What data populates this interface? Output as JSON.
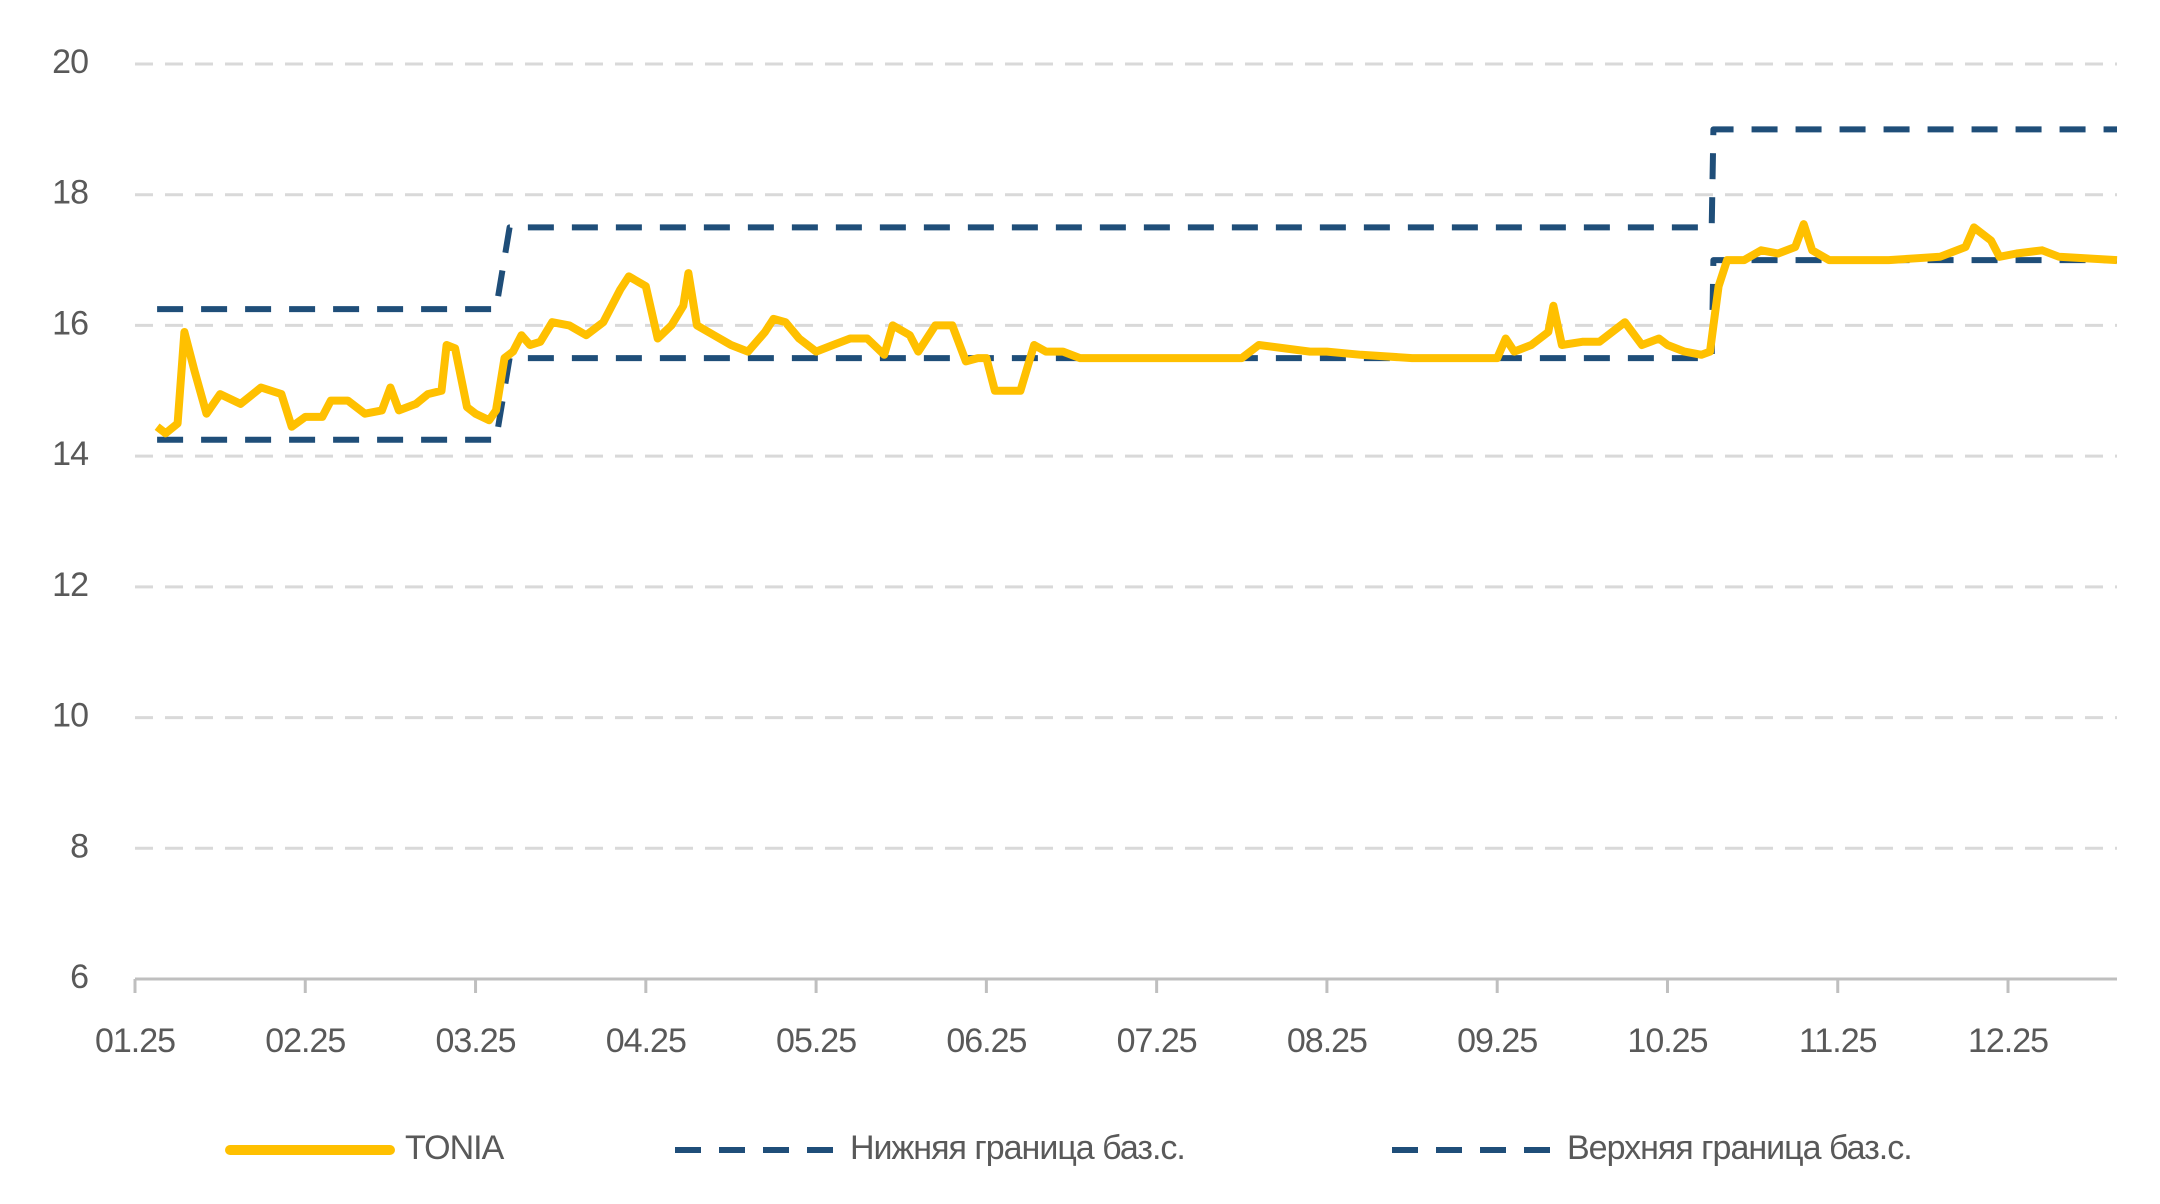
{
  "chart_data": {
    "type": "line",
    "xlim": [
      0,
      11.64
    ],
    "xticks": [
      {
        "value": 0,
        "label": "01.25"
      },
      {
        "value": 1,
        "label": "02.25"
      },
      {
        "value": 2,
        "label": "03.25"
      },
      {
        "value": 3,
        "label": "04.25"
      },
      {
        "value": 4,
        "label": "05.25"
      },
      {
        "value": 5,
        "label": "06.25"
      },
      {
        "value": 6,
        "label": "07.25"
      },
      {
        "value": 7,
        "label": "08.25"
      },
      {
        "value": 8,
        "label": "09.25"
      },
      {
        "value": 9,
        "label": "10.25"
      },
      {
        "value": 10,
        "label": "11.25"
      },
      {
        "value": 11,
        "label": "12.25"
      }
    ],
    "ylim": [
      6,
      20
    ],
    "yticks": [
      6,
      8,
      10,
      12,
      14,
      16,
      18,
      20
    ],
    "grid": true,
    "legend": "bottom",
    "series": [
      {
        "name": "TONIA",
        "color": "#FFC000",
        "line_style": "solid",
        "x": [
          0.13,
          0.18,
          0.25,
          0.29,
          0.35,
          0.42,
          0.5,
          0.62,
          0.74,
          0.86,
          0.92,
          1.0,
          1.1,
          1.15,
          1.25,
          1.35,
          1.45,
          1.5,
          1.55,
          1.65,
          1.72,
          1.8,
          1.83,
          1.88,
          1.95,
          2.0,
          2.08,
          2.12,
          2.17,
          2.22,
          2.27,
          2.32,
          2.38,
          2.45,
          2.55,
          2.65,
          2.75,
          2.85,
          2.9,
          3.0,
          3.07,
          3.15,
          3.22,
          3.25,
          3.3,
          3.4,
          3.5,
          3.6,
          3.7,
          3.75,
          3.82,
          3.9,
          4.0,
          4.1,
          4.2,
          4.3,
          4.4,
          4.45,
          4.55,
          4.6,
          4.7,
          4.8,
          4.88,
          4.95,
          5.0,
          5.05,
          5.1,
          5.2,
          5.28,
          5.35,
          5.45,
          5.55,
          6.0,
          6.2,
          6.5,
          6.6,
          6.9,
          7.0,
          7.2,
          7.5,
          7.9,
          8.0,
          8.05,
          8.1,
          8.2,
          8.3,
          8.33,
          8.38,
          8.5,
          8.6,
          8.75,
          8.85,
          8.95,
          9.0,
          9.1,
          9.2,
          9.25,
          9.3,
          9.35,
          9.45,
          9.55,
          9.65,
          9.75,
          9.8,
          9.85,
          9.95,
          10.1,
          10.3,
          10.6,
          10.75,
          10.8,
          10.9,
          10.95,
          11.05,
          11.2,
          11.3,
          11.64
        ],
        "values": [
          14.45,
          14.35,
          14.5,
          15.9,
          15.3,
          14.65,
          14.95,
          14.8,
          15.05,
          14.95,
          14.45,
          14.6,
          14.6,
          14.85,
          14.85,
          14.65,
          14.7,
          15.05,
          14.7,
          14.8,
          14.95,
          15.0,
          15.7,
          15.65,
          14.75,
          14.65,
          14.55,
          14.7,
          15.5,
          15.6,
          15.85,
          15.7,
          15.75,
          16.05,
          16.0,
          15.85,
          16.05,
          16.55,
          16.75,
          16.6,
          15.8,
          16.0,
          16.3,
          16.8,
          16.0,
          15.85,
          15.7,
          15.6,
          15.9,
          16.1,
          16.05,
          15.8,
          15.6,
          15.7,
          15.8,
          15.8,
          15.55,
          16.0,
          15.85,
          15.6,
          16.0,
          16.0,
          15.45,
          15.5,
          15.5,
          15.0,
          15.0,
          15.0,
          15.7,
          15.6,
          15.6,
          15.5,
          15.5,
          15.5,
          15.5,
          15.7,
          15.6,
          15.6,
          15.55,
          15.5,
          15.5,
          15.5,
          15.8,
          15.6,
          15.7,
          15.9,
          16.3,
          15.7,
          15.75,
          15.75,
          16.05,
          15.7,
          15.8,
          15.7,
          15.6,
          15.55,
          15.6,
          16.6,
          17.0,
          17.0,
          17.15,
          17.1,
          17.2,
          17.55,
          17.15,
          17.0,
          17.0,
          17.0,
          17.05,
          17.2,
          17.5,
          17.3,
          17.05,
          17.1,
          17.15,
          17.05,
          17.0
        ]
      },
      {
        "name": "Нижняя граница баз.с.",
        "color": "#1F4E79",
        "line_style": "dashed",
        "x": [
          0.13,
          2.12,
          2.2,
          9.26,
          9.27,
          11.64
        ],
        "values": [
          14.25,
          14.25,
          15.5,
          15.5,
          17,
          17
        ]
      },
      {
        "name": "Верхняя граница баз.с.",
        "color": "#1F4E79",
        "line_style": "dashed",
        "x": [
          0.13,
          2.12,
          2.2,
          9.26,
          9.27,
          11.64
        ],
        "values": [
          16.25,
          16.25,
          17.5,
          17.5,
          19,
          19
        ]
      }
    ]
  }
}
